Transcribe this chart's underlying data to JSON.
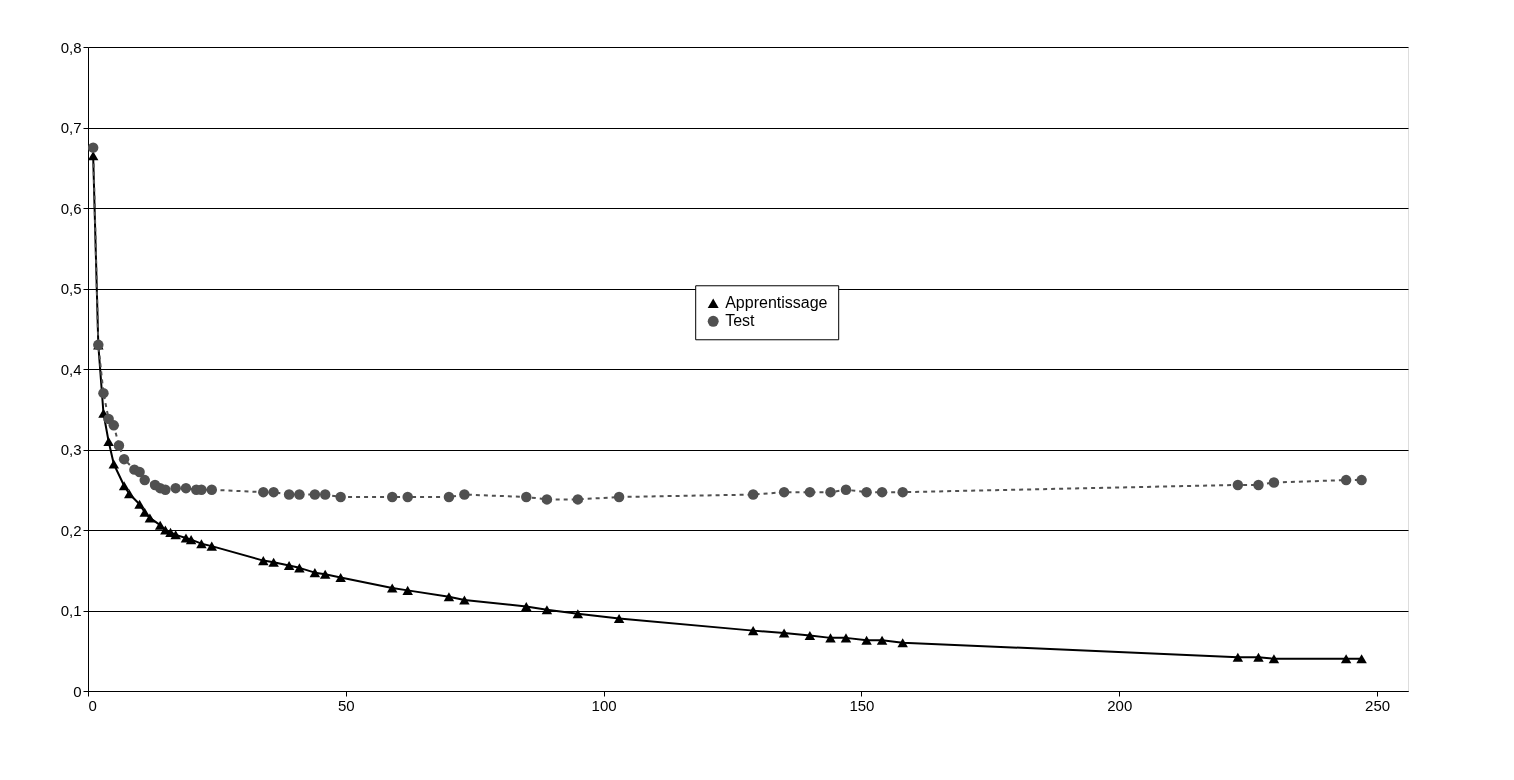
{
  "chart_data": {
    "type": "line",
    "xlim": [
      0,
      256
    ],
    "xticks": [
      0,
      50,
      100,
      150,
      200,
      250
    ],
    "ylim": [
      0,
      0.8
    ],
    "yticks": [
      0,
      {
        "value": 0.1,
        "label": "0,1"
      },
      {
        "value": 0.2,
        "label": "0,2"
      },
      {
        "value": 0.3,
        "label": "0,3"
      },
      {
        "value": 0.4,
        "label": "0,4"
      },
      {
        "value": 0.5,
        "label": "0,5"
      },
      {
        "value": 0.6,
        "label": "0,6"
      },
      {
        "value": 0.7,
        "label": "0,7"
      },
      {
        "value": 0.8,
        "label": "0,8"
      }
    ],
    "grid": "y",
    "legend": "center right",
    "series": [
      {
        "name": "Apprentissage",
        "color": "#000000",
        "marker": "triangle",
        "line_style": "solid",
        "x": [
          1,
          2,
          3,
          4,
          5,
          7,
          8,
          10,
          11,
          12,
          14,
          15,
          16,
          17,
          19,
          20,
          22,
          24,
          34,
          36,
          39,
          41,
          44,
          46,
          49,
          59,
          62,
          70,
          73,
          85,
          89,
          95,
          103,
          129,
          135,
          140,
          144,
          147,
          151,
          154,
          158,
          223,
          227,
          230,
          244,
          247
        ],
        "values": [
          0.665,
          0.43,
          0.345,
          0.31,
          0.282,
          0.255,
          0.245,
          0.232,
          0.222,
          0.215,
          0.206,
          0.2,
          0.197,
          0.194,
          0.19,
          0.188,
          0.183,
          0.18,
          0.162,
          0.16,
          0.156,
          0.153,
          0.147,
          0.145,
          0.141,
          0.128,
          0.125,
          0.117,
          0.113,
          0.105,
          0.101,
          0.096,
          0.09,
          0.075,
          0.072,
          0.069,
          0.066,
          0.066,
          0.063,
          0.063,
          0.06,
          0.042,
          0.042,
          0.04,
          0.04,
          0.04
        ]
      },
      {
        "name": "Test",
        "color": "#505050",
        "marker": "circle",
        "line_style": "dashed",
        "x": [
          1,
          2,
          3,
          4,
          5,
          6,
          7,
          9,
          10,
          11,
          13,
          14,
          15,
          17,
          19,
          21,
          22,
          24,
          34,
          36,
          39,
          41,
          44,
          46,
          49,
          59,
          62,
          70,
          73,
          85,
          89,
          95,
          103,
          129,
          135,
          140,
          144,
          147,
          151,
          154,
          158,
          223,
          227,
          230,
          244,
          247
        ],
        "values": [
          0.675,
          0.43,
          0.37,
          0.338,
          0.33,
          0.305,
          0.288,
          0.275,
          0.272,
          0.262,
          0.256,
          0.252,
          0.25,
          0.252,
          0.252,
          0.25,
          0.25,
          0.25,
          0.247,
          0.247,
          0.244,
          0.244,
          0.244,
          0.244,
          0.241,
          0.241,
          0.241,
          0.241,
          0.244,
          0.241,
          0.238,
          0.238,
          0.241,
          0.244,
          0.247,
          0.247,
          0.247,
          0.25,
          0.247,
          0.247,
          0.247,
          0.256,
          0.256,
          0.259,
          0.262,
          0.262
        ]
      }
    ]
  }
}
